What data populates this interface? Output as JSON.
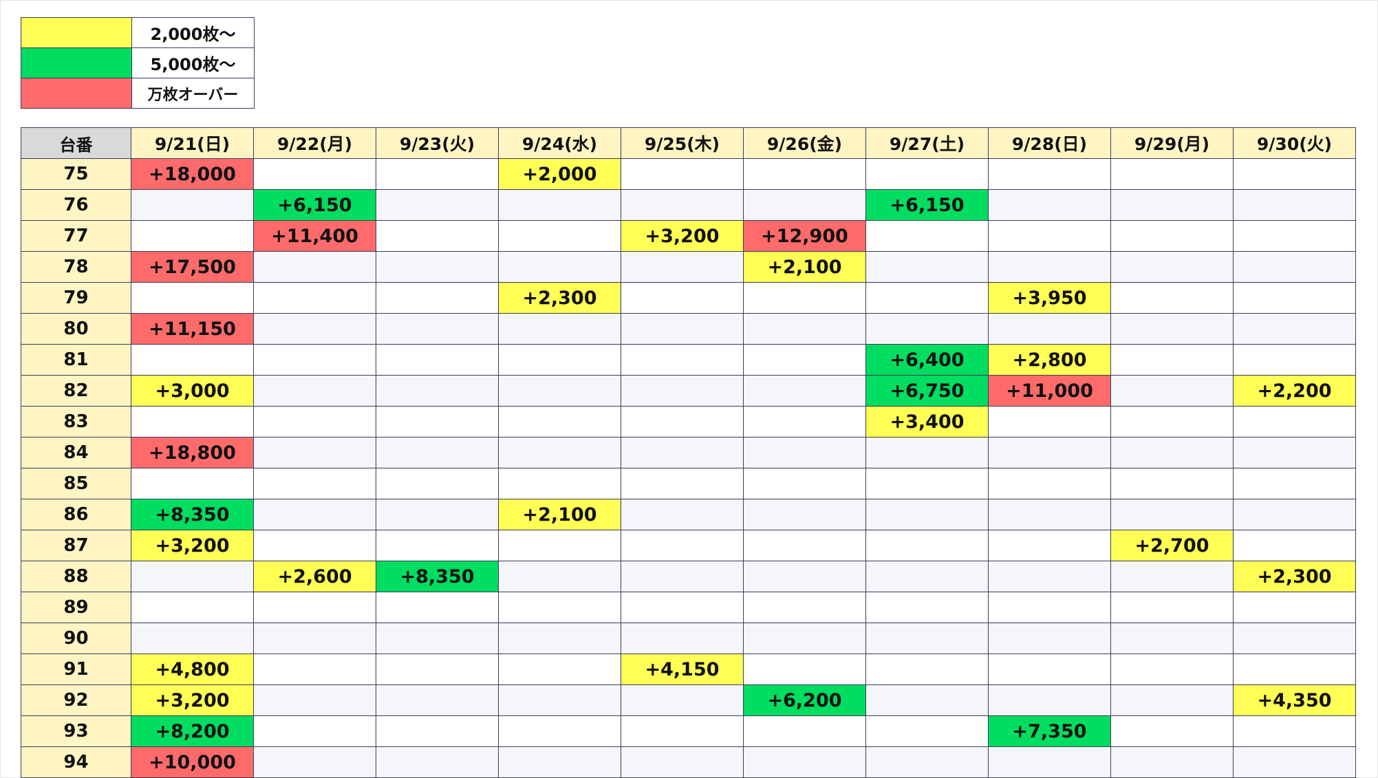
{
  "colors": {
    "yellow": "#ffff55",
    "green": "#00dd60",
    "red": "#ff6b6b",
    "header_bg": "#fff5c2",
    "corner_bg": "#d9d9d9"
  },
  "legend": [
    {
      "color": "yellow",
      "label": "2,000枚〜"
    },
    {
      "color": "green",
      "label": "5,000枚〜"
    },
    {
      "color": "red",
      "label": "万枚オーバー"
    }
  ],
  "table": {
    "corner": "台番",
    "dates": [
      "9/21(日)",
      "9/22(月)",
      "9/23(火)",
      "9/24(水)",
      "9/25(木)",
      "9/26(金)",
      "9/27(土)",
      "9/28(日)",
      "9/29(月)",
      "9/30(火)"
    ],
    "rows": [
      {
        "unit": "75",
        "cells": [
          {
            "v": "+18,000",
            "c": "r"
          },
          {
            "v": "",
            "c": ""
          },
          {
            "v": "",
            "c": ""
          },
          {
            "v": "+2,000",
            "c": "y"
          },
          {
            "v": "",
            "c": ""
          },
          {
            "v": "",
            "c": ""
          },
          {
            "v": "",
            "c": ""
          },
          {
            "v": "",
            "c": ""
          },
          {
            "v": "",
            "c": ""
          },
          {
            "v": "",
            "c": ""
          }
        ]
      },
      {
        "unit": "76",
        "cells": [
          {
            "v": "",
            "c": ""
          },
          {
            "v": "+6,150",
            "c": "g"
          },
          {
            "v": "",
            "c": ""
          },
          {
            "v": "",
            "c": ""
          },
          {
            "v": "",
            "c": ""
          },
          {
            "v": "",
            "c": ""
          },
          {
            "v": "+6,150",
            "c": "g"
          },
          {
            "v": "",
            "c": ""
          },
          {
            "v": "",
            "c": ""
          },
          {
            "v": "",
            "c": ""
          }
        ]
      },
      {
        "unit": "77",
        "cells": [
          {
            "v": "",
            "c": ""
          },
          {
            "v": "+11,400",
            "c": "r"
          },
          {
            "v": "",
            "c": ""
          },
          {
            "v": "",
            "c": ""
          },
          {
            "v": "+3,200",
            "c": "y"
          },
          {
            "v": "+12,900",
            "c": "r"
          },
          {
            "v": "",
            "c": ""
          },
          {
            "v": "",
            "c": ""
          },
          {
            "v": "",
            "c": ""
          },
          {
            "v": "",
            "c": ""
          }
        ]
      },
      {
        "unit": "78",
        "cells": [
          {
            "v": "+17,500",
            "c": "r"
          },
          {
            "v": "",
            "c": ""
          },
          {
            "v": "",
            "c": ""
          },
          {
            "v": "",
            "c": ""
          },
          {
            "v": "",
            "c": ""
          },
          {
            "v": "+2,100",
            "c": "y"
          },
          {
            "v": "",
            "c": ""
          },
          {
            "v": "",
            "c": ""
          },
          {
            "v": "",
            "c": ""
          },
          {
            "v": "",
            "c": ""
          }
        ]
      },
      {
        "unit": "79",
        "cells": [
          {
            "v": "",
            "c": ""
          },
          {
            "v": "",
            "c": ""
          },
          {
            "v": "",
            "c": ""
          },
          {
            "v": "+2,300",
            "c": "y"
          },
          {
            "v": "",
            "c": ""
          },
          {
            "v": "",
            "c": ""
          },
          {
            "v": "",
            "c": ""
          },
          {
            "v": "+3,950",
            "c": "y"
          },
          {
            "v": "",
            "c": ""
          },
          {
            "v": "",
            "c": ""
          }
        ]
      },
      {
        "unit": "80",
        "cells": [
          {
            "v": "+11,150",
            "c": "r"
          },
          {
            "v": "",
            "c": ""
          },
          {
            "v": "",
            "c": ""
          },
          {
            "v": "",
            "c": ""
          },
          {
            "v": "",
            "c": ""
          },
          {
            "v": "",
            "c": ""
          },
          {
            "v": "",
            "c": ""
          },
          {
            "v": "",
            "c": ""
          },
          {
            "v": "",
            "c": ""
          },
          {
            "v": "",
            "c": ""
          }
        ]
      },
      {
        "unit": "81",
        "cells": [
          {
            "v": "",
            "c": ""
          },
          {
            "v": "",
            "c": ""
          },
          {
            "v": "",
            "c": ""
          },
          {
            "v": "",
            "c": ""
          },
          {
            "v": "",
            "c": ""
          },
          {
            "v": "",
            "c": ""
          },
          {
            "v": "+6,400",
            "c": "g"
          },
          {
            "v": "+2,800",
            "c": "y"
          },
          {
            "v": "",
            "c": ""
          },
          {
            "v": "",
            "c": ""
          }
        ]
      },
      {
        "unit": "82",
        "cells": [
          {
            "v": "+3,000",
            "c": "y"
          },
          {
            "v": "",
            "c": ""
          },
          {
            "v": "",
            "c": ""
          },
          {
            "v": "",
            "c": ""
          },
          {
            "v": "",
            "c": ""
          },
          {
            "v": "",
            "c": ""
          },
          {
            "v": "+6,750",
            "c": "g"
          },
          {
            "v": "+11,000",
            "c": "r"
          },
          {
            "v": "",
            "c": ""
          },
          {
            "v": "+2,200",
            "c": "y"
          }
        ]
      },
      {
        "unit": "83",
        "cells": [
          {
            "v": "",
            "c": ""
          },
          {
            "v": "",
            "c": ""
          },
          {
            "v": "",
            "c": ""
          },
          {
            "v": "",
            "c": ""
          },
          {
            "v": "",
            "c": ""
          },
          {
            "v": "",
            "c": ""
          },
          {
            "v": "+3,400",
            "c": "y"
          },
          {
            "v": "",
            "c": ""
          },
          {
            "v": "",
            "c": ""
          },
          {
            "v": "",
            "c": ""
          }
        ]
      },
      {
        "unit": "84",
        "cells": [
          {
            "v": "+18,800",
            "c": "r"
          },
          {
            "v": "",
            "c": ""
          },
          {
            "v": "",
            "c": ""
          },
          {
            "v": "",
            "c": ""
          },
          {
            "v": "",
            "c": ""
          },
          {
            "v": "",
            "c": ""
          },
          {
            "v": "",
            "c": ""
          },
          {
            "v": "",
            "c": ""
          },
          {
            "v": "",
            "c": ""
          },
          {
            "v": "",
            "c": ""
          }
        ]
      },
      {
        "unit": "85",
        "cells": [
          {
            "v": "",
            "c": ""
          },
          {
            "v": "",
            "c": ""
          },
          {
            "v": "",
            "c": ""
          },
          {
            "v": "",
            "c": ""
          },
          {
            "v": "",
            "c": ""
          },
          {
            "v": "",
            "c": ""
          },
          {
            "v": "",
            "c": ""
          },
          {
            "v": "",
            "c": ""
          },
          {
            "v": "",
            "c": ""
          },
          {
            "v": "",
            "c": ""
          }
        ]
      },
      {
        "unit": "86",
        "cells": [
          {
            "v": "+8,350",
            "c": "g"
          },
          {
            "v": "",
            "c": ""
          },
          {
            "v": "",
            "c": ""
          },
          {
            "v": "+2,100",
            "c": "y"
          },
          {
            "v": "",
            "c": ""
          },
          {
            "v": "",
            "c": ""
          },
          {
            "v": "",
            "c": ""
          },
          {
            "v": "",
            "c": ""
          },
          {
            "v": "",
            "c": ""
          },
          {
            "v": "",
            "c": ""
          }
        ]
      },
      {
        "unit": "87",
        "cells": [
          {
            "v": "+3,200",
            "c": "y"
          },
          {
            "v": "",
            "c": ""
          },
          {
            "v": "",
            "c": ""
          },
          {
            "v": "",
            "c": ""
          },
          {
            "v": "",
            "c": ""
          },
          {
            "v": "",
            "c": ""
          },
          {
            "v": "",
            "c": ""
          },
          {
            "v": "",
            "c": ""
          },
          {
            "v": "+2,700",
            "c": "y"
          },
          {
            "v": "",
            "c": ""
          }
        ]
      },
      {
        "unit": "88",
        "cells": [
          {
            "v": "",
            "c": ""
          },
          {
            "v": "+2,600",
            "c": "y"
          },
          {
            "v": "+8,350",
            "c": "g"
          },
          {
            "v": "",
            "c": ""
          },
          {
            "v": "",
            "c": ""
          },
          {
            "v": "",
            "c": ""
          },
          {
            "v": "",
            "c": ""
          },
          {
            "v": "",
            "c": ""
          },
          {
            "v": "",
            "c": ""
          },
          {
            "v": "+2,300",
            "c": "y"
          }
        ]
      },
      {
        "unit": "89",
        "cells": [
          {
            "v": "",
            "c": ""
          },
          {
            "v": "",
            "c": ""
          },
          {
            "v": "",
            "c": ""
          },
          {
            "v": "",
            "c": ""
          },
          {
            "v": "",
            "c": ""
          },
          {
            "v": "",
            "c": ""
          },
          {
            "v": "",
            "c": ""
          },
          {
            "v": "",
            "c": ""
          },
          {
            "v": "",
            "c": ""
          },
          {
            "v": "",
            "c": ""
          }
        ]
      },
      {
        "unit": "90",
        "cells": [
          {
            "v": "",
            "c": ""
          },
          {
            "v": "",
            "c": ""
          },
          {
            "v": "",
            "c": ""
          },
          {
            "v": "",
            "c": ""
          },
          {
            "v": "",
            "c": ""
          },
          {
            "v": "",
            "c": ""
          },
          {
            "v": "",
            "c": ""
          },
          {
            "v": "",
            "c": ""
          },
          {
            "v": "",
            "c": ""
          },
          {
            "v": "",
            "c": ""
          }
        ]
      },
      {
        "unit": "91",
        "cells": [
          {
            "v": "+4,800",
            "c": "y"
          },
          {
            "v": "",
            "c": ""
          },
          {
            "v": "",
            "c": ""
          },
          {
            "v": "",
            "c": ""
          },
          {
            "v": "+4,150",
            "c": "y"
          },
          {
            "v": "",
            "c": ""
          },
          {
            "v": "",
            "c": ""
          },
          {
            "v": "",
            "c": ""
          },
          {
            "v": "",
            "c": ""
          },
          {
            "v": "",
            "c": ""
          }
        ]
      },
      {
        "unit": "92",
        "cells": [
          {
            "v": "+3,200",
            "c": "y"
          },
          {
            "v": "",
            "c": ""
          },
          {
            "v": "",
            "c": ""
          },
          {
            "v": "",
            "c": ""
          },
          {
            "v": "",
            "c": ""
          },
          {
            "v": "+6,200",
            "c": "g"
          },
          {
            "v": "",
            "c": ""
          },
          {
            "v": "",
            "c": ""
          },
          {
            "v": "",
            "c": ""
          },
          {
            "v": "+4,350",
            "c": "y"
          }
        ]
      },
      {
        "unit": "93",
        "cells": [
          {
            "v": "+8,200",
            "c": "g"
          },
          {
            "v": "",
            "c": ""
          },
          {
            "v": "",
            "c": ""
          },
          {
            "v": "",
            "c": ""
          },
          {
            "v": "",
            "c": ""
          },
          {
            "v": "",
            "c": ""
          },
          {
            "v": "",
            "c": ""
          },
          {
            "v": "+7,350",
            "c": "g"
          },
          {
            "v": "",
            "c": ""
          },
          {
            "v": "",
            "c": ""
          }
        ]
      },
      {
        "unit": "94",
        "cells": [
          {
            "v": "+10,000",
            "c": "r"
          },
          {
            "v": "",
            "c": ""
          },
          {
            "v": "",
            "c": ""
          },
          {
            "v": "",
            "c": ""
          },
          {
            "v": "",
            "c": ""
          },
          {
            "v": "",
            "c": ""
          },
          {
            "v": "",
            "c": ""
          },
          {
            "v": "",
            "c": ""
          },
          {
            "v": "",
            "c": ""
          },
          {
            "v": "",
            "c": ""
          }
        ]
      }
    ]
  }
}
